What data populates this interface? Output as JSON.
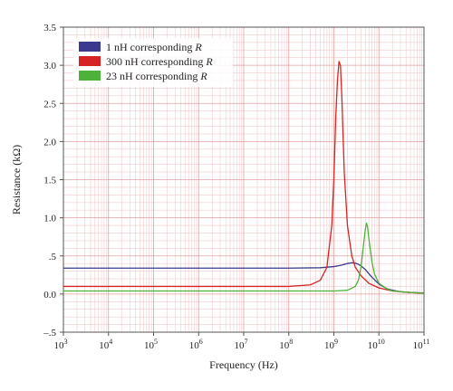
{
  "chart_data": {
    "type": "line",
    "xscale": "log",
    "xlabel": "Frequency (Hz)",
    "ylabel": "Resistance (kΩ)",
    "xlim": [
      1000,
      100000000000
    ],
    "ylim": [
      -0.5,
      3.5
    ],
    "grid": true,
    "legend_position": "top-left",
    "x_ticks": [
      {
        "value": 1000,
        "base": "10",
        "exp": "3"
      },
      {
        "value": 10000,
        "base": "10",
        "exp": "4"
      },
      {
        "value": 100000,
        "base": "10",
        "exp": "5"
      },
      {
        "value": 1000000,
        "base": "10",
        "exp": "6"
      },
      {
        "value": 10000000,
        "base": "10",
        "exp": "7"
      },
      {
        "value": 100000000,
        "base": "10",
        "exp": "8"
      },
      {
        "value": 1000000000,
        "base": "10",
        "exp": "9"
      },
      {
        "value": 10000000000,
        "base": "10",
        "exp": "10"
      },
      {
        "value": 100000000000,
        "base": "10",
        "exp": "11"
      }
    ],
    "y_ticks": [
      {
        "value": -0.5,
        "label": "–.5"
      },
      {
        "value": 0.0,
        "label": "0.0"
      },
      {
        "value": 0.5,
        "label": ".5"
      },
      {
        "value": 1.0,
        "label": "1.0"
      },
      {
        "value": 1.5,
        "label": "1.5"
      },
      {
        "value": 2.0,
        "label": "2.0"
      },
      {
        "value": 2.5,
        "label": "2.5"
      },
      {
        "value": 3.0,
        "label": "3.0"
      },
      {
        "value": 3.5,
        "label": "3.5"
      }
    ],
    "series": [
      {
        "name_prefix": "1 nH corresponding ",
        "name_var": "R",
        "color": "#3b3a8f",
        "points": [
          [
            1000,
            0.34
          ],
          [
            100000000,
            0.34
          ],
          [
            500000000,
            0.345
          ],
          [
            1000000000,
            0.36
          ],
          [
            1500000000,
            0.38
          ],
          [
            2000000000,
            0.4
          ],
          [
            2500000000,
            0.41
          ],
          [
            3000000000,
            0.405
          ],
          [
            3500000000,
            0.39
          ],
          [
            4000000000,
            0.37
          ],
          [
            5000000000,
            0.32
          ],
          [
            7000000000,
            0.22
          ],
          [
            10000000000,
            0.13
          ],
          [
            15000000000,
            0.07
          ],
          [
            20000000000,
            0.05
          ],
          [
            30000000000,
            0.03
          ],
          [
            50000000000,
            0.02
          ],
          [
            100000000000,
            0.015
          ]
        ]
      },
      {
        "name_prefix": "300 nH corresponding ",
        "name_var": "R",
        "color": "#d62424",
        "points": [
          [
            1000,
            0.1
          ],
          [
            100000000,
            0.1
          ],
          [
            300000000,
            0.12
          ],
          [
            500000000,
            0.18
          ],
          [
            700000000,
            0.35
          ],
          [
            900000000,
            0.9
          ],
          [
            1000000000,
            1.5
          ],
          [
            1100000000,
            2.3
          ],
          [
            1200000000,
            2.8
          ],
          [
            1300000000,
            3.05
          ],
          [
            1400000000,
            3.0
          ],
          [
            1500000000,
            2.6
          ],
          [
            1700000000,
            1.6
          ],
          [
            2000000000,
            0.9
          ],
          [
            2500000000,
            0.5
          ],
          [
            3000000000,
            0.35
          ],
          [
            4000000000,
            0.24
          ],
          [
            6000000000,
            0.14
          ],
          [
            10000000000,
            0.08
          ],
          [
            20000000000,
            0.04
          ],
          [
            50000000000,
            0.02
          ],
          [
            100000000000,
            0.01
          ]
        ]
      },
      {
        "name_prefix": "23 nH corresponding ",
        "name_var": "R",
        "color": "#4cb23a",
        "points": [
          [
            1000,
            0.04
          ],
          [
            1000000000,
            0.04
          ],
          [
            2000000000,
            0.05
          ],
          [
            3000000000,
            0.1
          ],
          [
            3500000000,
            0.18
          ],
          [
            4000000000,
            0.35
          ],
          [
            4500000000,
            0.62
          ],
          [
            5000000000,
            0.85
          ],
          [
            5300000000,
            0.93
          ],
          [
            5600000000,
            0.88
          ],
          [
            6000000000,
            0.72
          ],
          [
            7000000000,
            0.42
          ],
          [
            8000000000,
            0.26
          ],
          [
            10000000000,
            0.14
          ],
          [
            15000000000,
            0.07
          ],
          [
            20000000000,
            0.04
          ],
          [
            50000000000,
            0.02
          ],
          [
            100000000000,
            0.01
          ]
        ]
      }
    ]
  }
}
